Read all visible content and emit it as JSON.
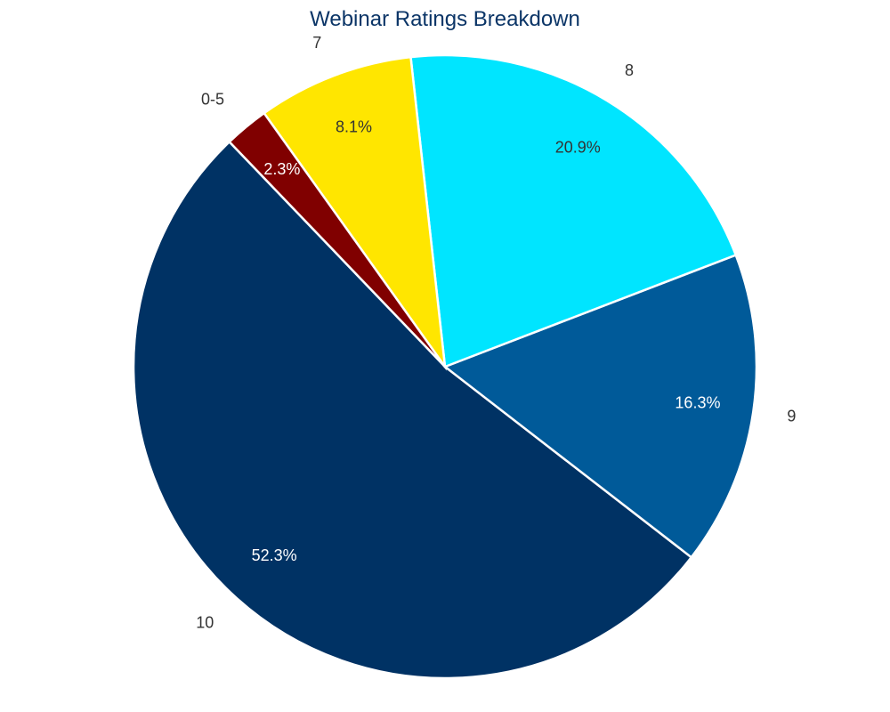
{
  "chart_data": {
    "type": "pie",
    "title": "Webinar Ratings Breakdown",
    "categories": [
      "10",
      "9",
      "8",
      "7",
      "0-5"
    ],
    "values": [
      52.3,
      16.3,
      20.9,
      8.1,
      2.3
    ],
    "value_labels": [
      "52.3%",
      "16.3%",
      "20.9%",
      "8.1%",
      "2.3%"
    ],
    "colors": [
      "#003264",
      "#005a99",
      "#00e5ff",
      "#ffe600",
      "#800000"
    ],
    "label_colors": [
      "#ffffff",
      "#ffffff",
      "#333333",
      "#333333",
      "#ffffff"
    ],
    "legend": "none"
  }
}
